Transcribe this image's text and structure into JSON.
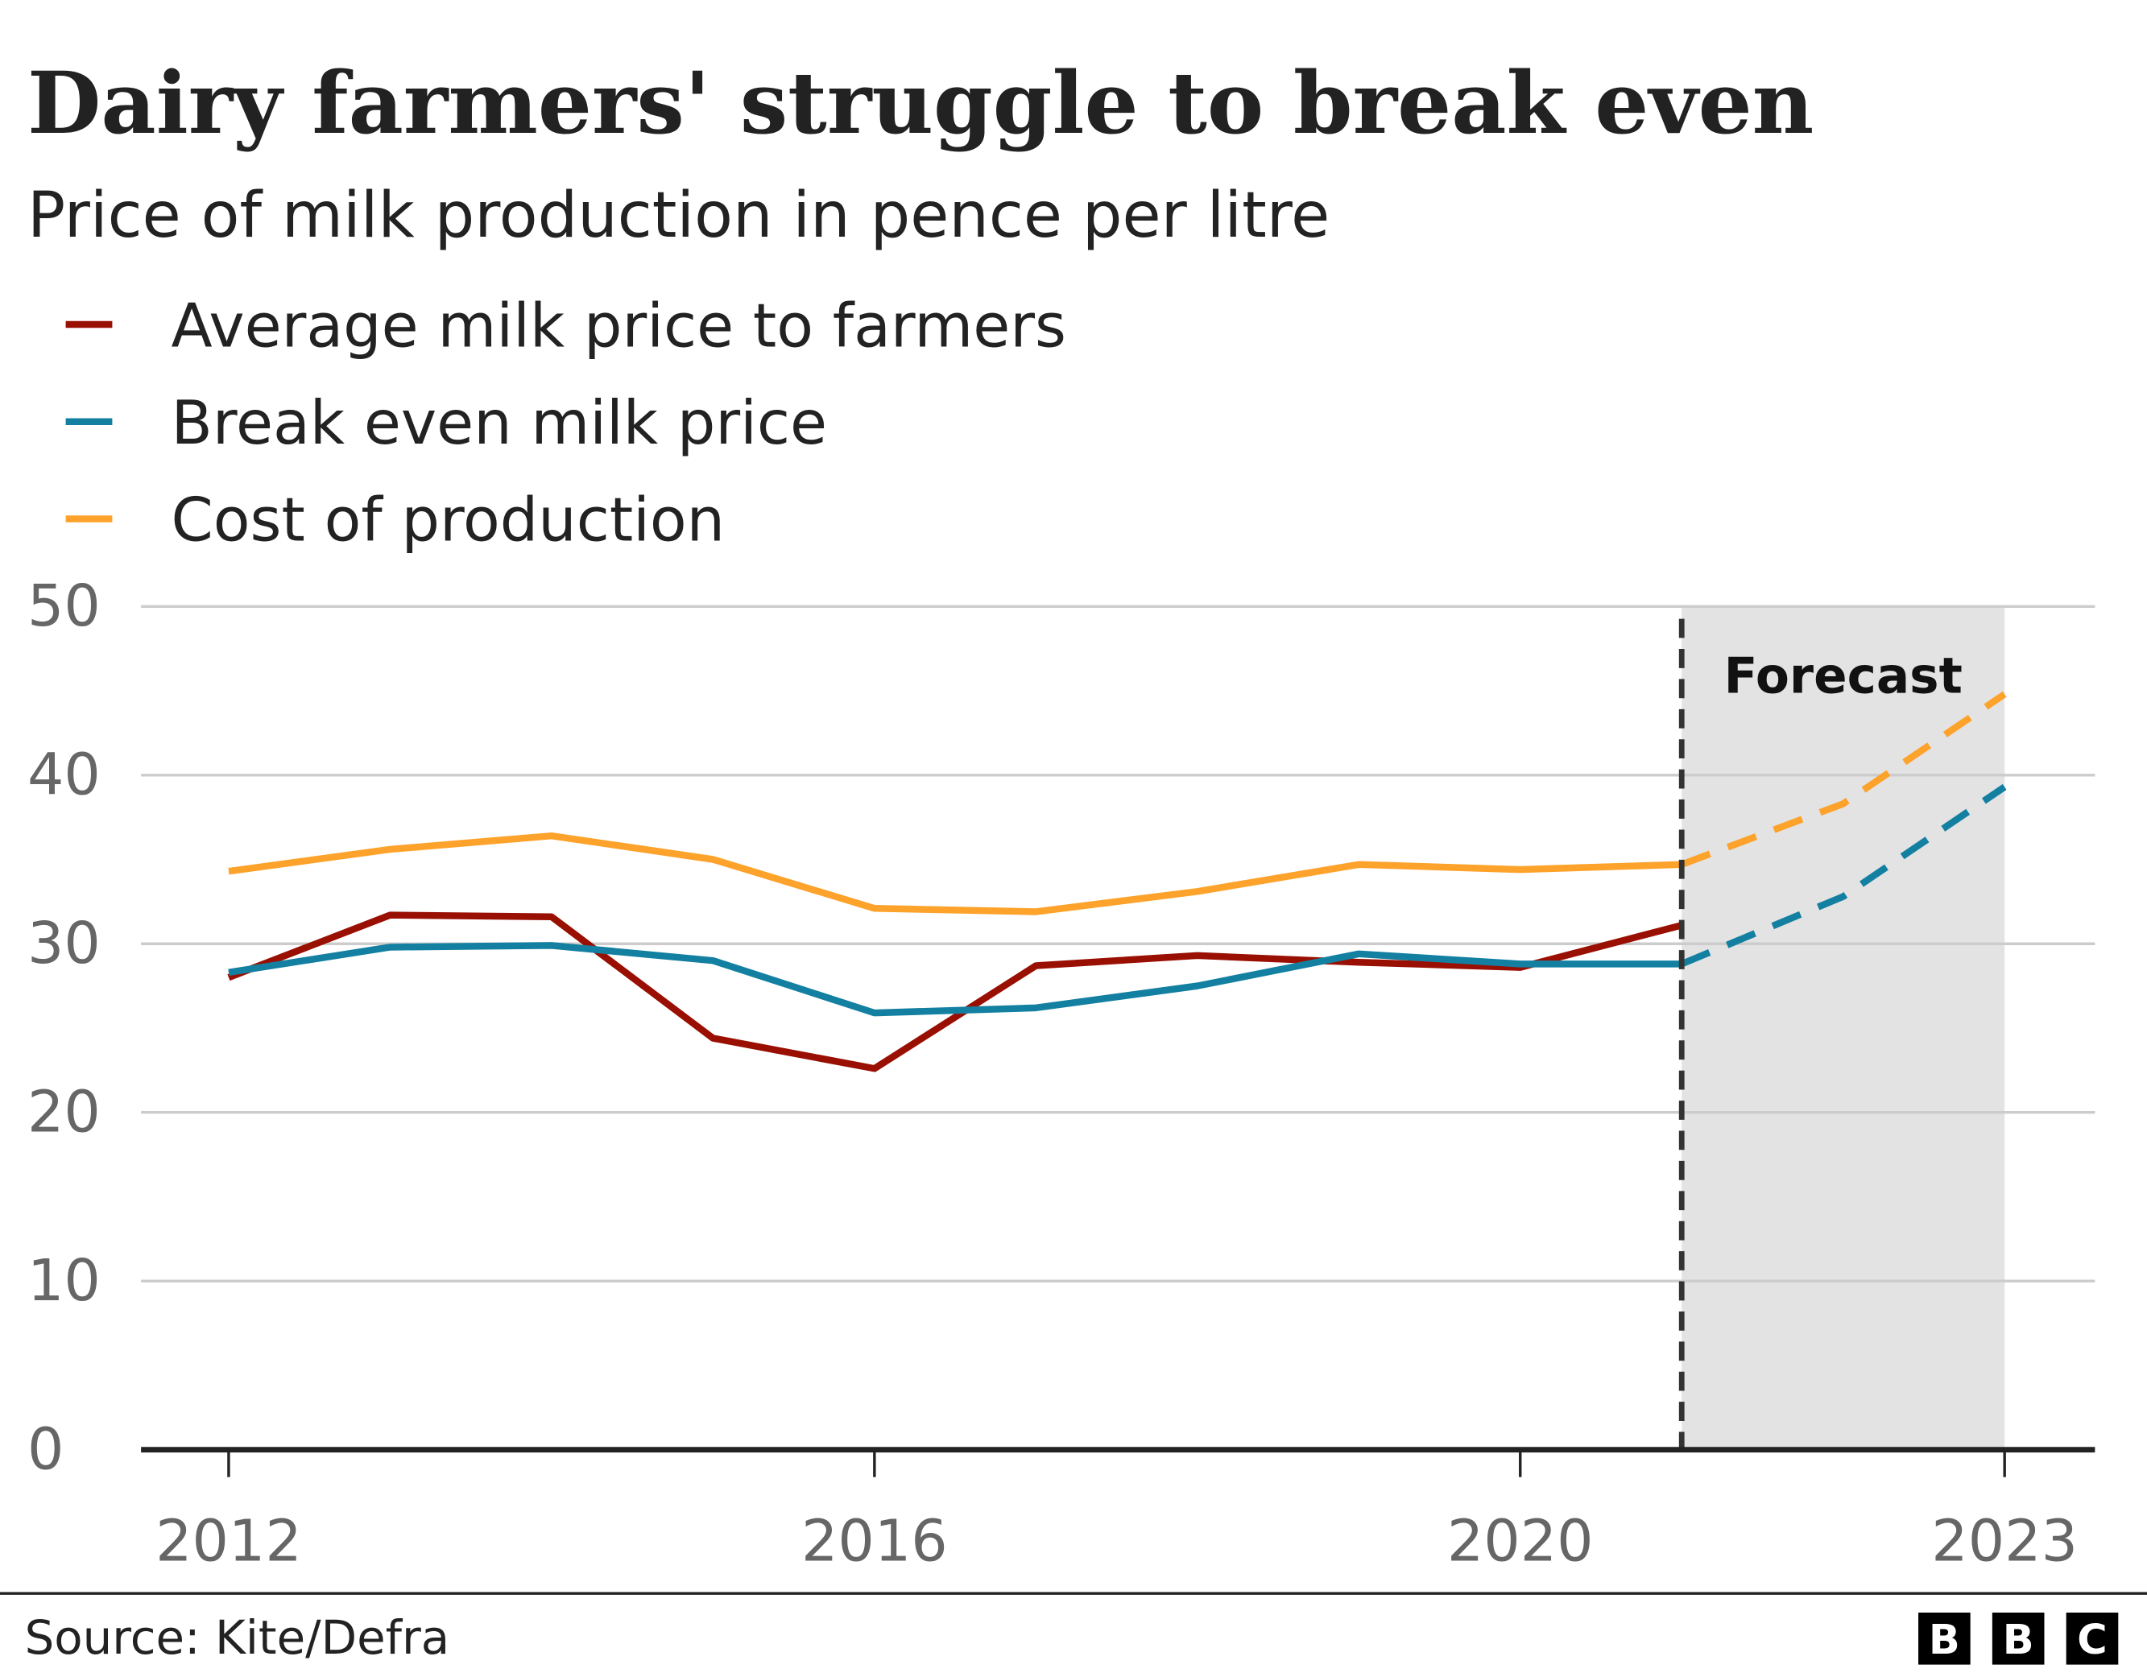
{
  "chart_data": {
    "type": "line",
    "title": "Dairy farmers' struggle to break even",
    "subtitle": "Price of milk production in pence per litre",
    "xlabel": "",
    "ylabel": "",
    "ylim": [
      0,
      50
    ],
    "xlim": [
      2012,
      2023
    ],
    "yticks": [
      "0",
      "10",
      "20",
      "30",
      "40",
      "50"
    ],
    "xticks": [
      "2012",
      "2016",
      "2020",
      "2023"
    ],
    "grid": true,
    "legend_position": "top-left",
    "forecast": {
      "label": "Forecast",
      "from": 2021,
      "to": 2023
    },
    "series": [
      {
        "name": "Average milk price to farmers",
        "color": "#990f02",
        "x": [
          2012,
          2013,
          2014,
          2015,
          2016,
          2017,
          2018,
          2019,
          2020,
          2021
        ],
        "values": [
          28.0,
          31.7,
          31.6,
          24.4,
          22.6,
          28.7,
          29.3,
          28.9,
          28.6,
          31.1
        ]
      },
      {
        "name": "Break even milk price",
        "color": "#1380a1",
        "x": [
          2012,
          2013,
          2014,
          2015,
          2016,
          2017,
          2018,
          2019,
          2020,
          2021,
          2022,
          2023
        ],
        "values": [
          28.3,
          29.8,
          29.9,
          29.0,
          25.9,
          26.2,
          27.5,
          29.4,
          28.8,
          28.8,
          32.8,
          39.3
        ]
      },
      {
        "name": "Cost of production",
        "color": "#fda22a",
        "x": [
          2012,
          2013,
          2014,
          2015,
          2016,
          2017,
          2018,
          2019,
          2020,
          2021,
          2022,
          2023
        ],
        "values": [
          34.3,
          35.6,
          36.4,
          35.0,
          32.1,
          31.9,
          33.1,
          34.7,
          34.4,
          34.7,
          38.3,
          44.8
        ]
      }
    ]
  },
  "footer": {
    "source": "Source: Kite/Defra",
    "logo": "BBC"
  }
}
